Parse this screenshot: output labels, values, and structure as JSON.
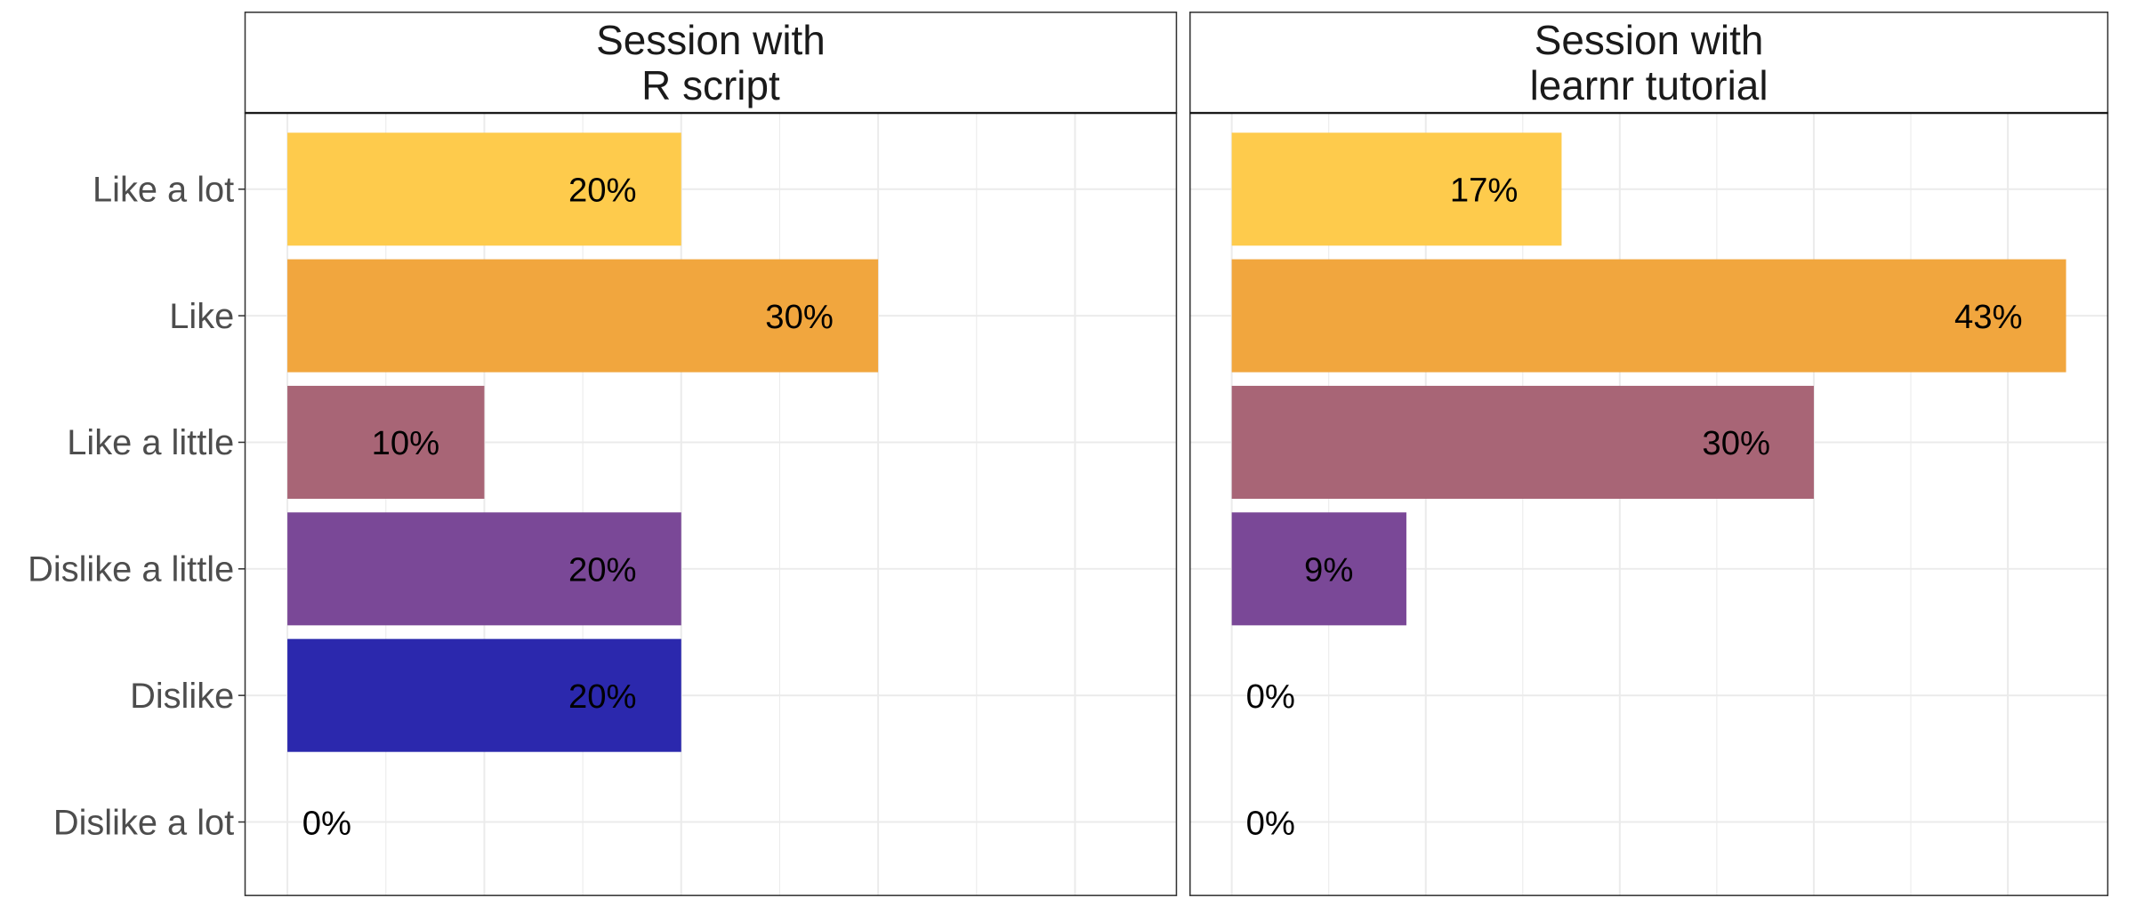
{
  "chart_data": {
    "type": "bar",
    "orientation": "horizontal",
    "categories": [
      "Like a lot",
      "Like",
      "Like a little",
      "Dislike a little",
      "Dislike",
      "Dislike a lot"
    ],
    "category_colors": [
      "#FECB4C",
      "#F1A63E",
      "#A86576",
      "#7A4897",
      "#2B28AD",
      "#1A1A80"
    ],
    "xlim": [
      -2.15,
      45.15
    ],
    "x_unit": "%",
    "x_tick_labels_shown": false,
    "grid": true,
    "legend": "none",
    "panels": [
      {
        "title_lines": [
          "Session with",
          "R script"
        ],
        "values": [
          20,
          30,
          10,
          20,
          20,
          0
        ],
        "labels": [
          "20%",
          "30%",
          "10%",
          "20%",
          "20%",
          "0%"
        ]
      },
      {
        "title_lines": [
          "Session with",
          "learnr tutorial"
        ],
        "values": [
          17,
          43,
          30,
          9,
          0,
          0
        ],
        "labels": [
          "17%",
          "43%",
          "30%",
          "9%",
          "0%",
          "0%"
        ]
      }
    ]
  }
}
